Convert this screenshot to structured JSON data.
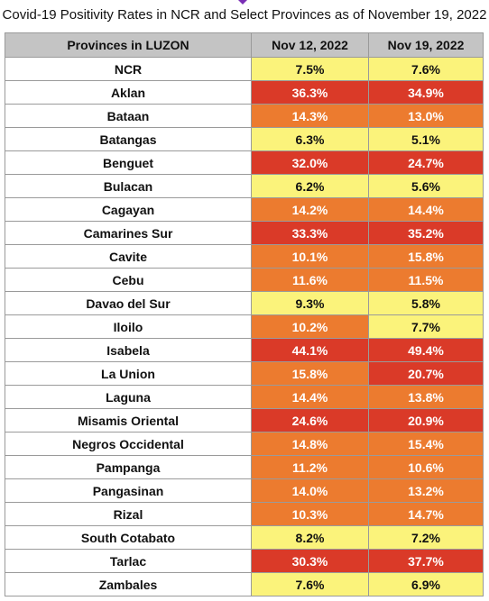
{
  "title": "Covid-19 Positivity Rates in NCR and Select Provinces as of November 19, 2022",
  "colors": {
    "low": "#fbf37b",
    "mid": "#ec7b2f",
    "high": "#da3a28",
    "header_bg": "#c4c4c4"
  },
  "chart_data": {
    "type": "table",
    "columns": [
      "Provinces in LUZON",
      "Nov 12, 2022",
      "Nov 19, 2022"
    ],
    "rows": [
      {
        "province": "NCR",
        "values": [
          "7.5%",
          "7.6%"
        ],
        "levels": [
          "low",
          "low"
        ]
      },
      {
        "province": "Aklan",
        "values": [
          "36.3%",
          "34.9%"
        ],
        "levels": [
          "high",
          "high"
        ]
      },
      {
        "province": "Bataan",
        "values": [
          "14.3%",
          "13.0%"
        ],
        "levels": [
          "mid",
          "mid"
        ]
      },
      {
        "province": "Batangas",
        "values": [
          "6.3%",
          "5.1%"
        ],
        "levels": [
          "low",
          "low"
        ]
      },
      {
        "province": "Benguet",
        "values": [
          "32.0%",
          "24.7%"
        ],
        "levels": [
          "high",
          "high"
        ]
      },
      {
        "province": "Bulacan",
        "values": [
          "6.2%",
          "5.6%"
        ],
        "levels": [
          "low",
          "low"
        ]
      },
      {
        "province": "Cagayan",
        "values": [
          "14.2%",
          "14.4%"
        ],
        "levels": [
          "mid",
          "mid"
        ]
      },
      {
        "province": "Camarines Sur",
        "values": [
          "33.3%",
          "35.2%"
        ],
        "levels": [
          "high",
          "high"
        ]
      },
      {
        "province": "Cavite",
        "values": [
          "10.1%",
          "15.8%"
        ],
        "levels": [
          "mid",
          "mid"
        ]
      },
      {
        "province": "Cebu",
        "values": [
          "11.6%",
          "11.5%"
        ],
        "levels": [
          "mid",
          "mid"
        ]
      },
      {
        "province": "Davao del Sur",
        "values": [
          "9.3%",
          "5.8%"
        ],
        "levels": [
          "low",
          "low"
        ]
      },
      {
        "province": "Iloilo",
        "values": [
          "10.2%",
          "7.7%"
        ],
        "levels": [
          "mid",
          "low"
        ]
      },
      {
        "province": "Isabela",
        "values": [
          "44.1%",
          "49.4%"
        ],
        "levels": [
          "high",
          "high"
        ]
      },
      {
        "province": "La Union",
        "values": [
          "15.8%",
          "20.7%"
        ],
        "levels": [
          "mid",
          "high"
        ]
      },
      {
        "province": "Laguna",
        "values": [
          "14.4%",
          "13.8%"
        ],
        "levels": [
          "mid",
          "mid"
        ]
      },
      {
        "province": "Misamis Oriental",
        "values": [
          "24.6%",
          "20.9%"
        ],
        "levels": [
          "high",
          "high"
        ]
      },
      {
        "province": "Negros Occidental",
        "values": [
          "14.8%",
          "15.4%"
        ],
        "levels": [
          "mid",
          "mid"
        ]
      },
      {
        "province": "Pampanga",
        "values": [
          "11.2%",
          "10.6%"
        ],
        "levels": [
          "mid",
          "mid"
        ]
      },
      {
        "province": "Pangasinan",
        "values": [
          "14.0%",
          "13.2%"
        ],
        "levels": [
          "mid",
          "mid"
        ]
      },
      {
        "province": "Rizal",
        "values": [
          "10.3%",
          "14.7%"
        ],
        "levels": [
          "mid",
          "mid"
        ]
      },
      {
        "province": "South Cotabato",
        "values": [
          "8.2%",
          "7.2%"
        ],
        "levels": [
          "low",
          "low"
        ]
      },
      {
        "province": "Tarlac",
        "values": [
          "30.3%",
          "37.7%"
        ],
        "levels": [
          "high",
          "high"
        ]
      },
      {
        "province": "Zambales",
        "values": [
          "7.6%",
          "6.9%"
        ],
        "levels": [
          "low",
          "low"
        ]
      }
    ]
  }
}
